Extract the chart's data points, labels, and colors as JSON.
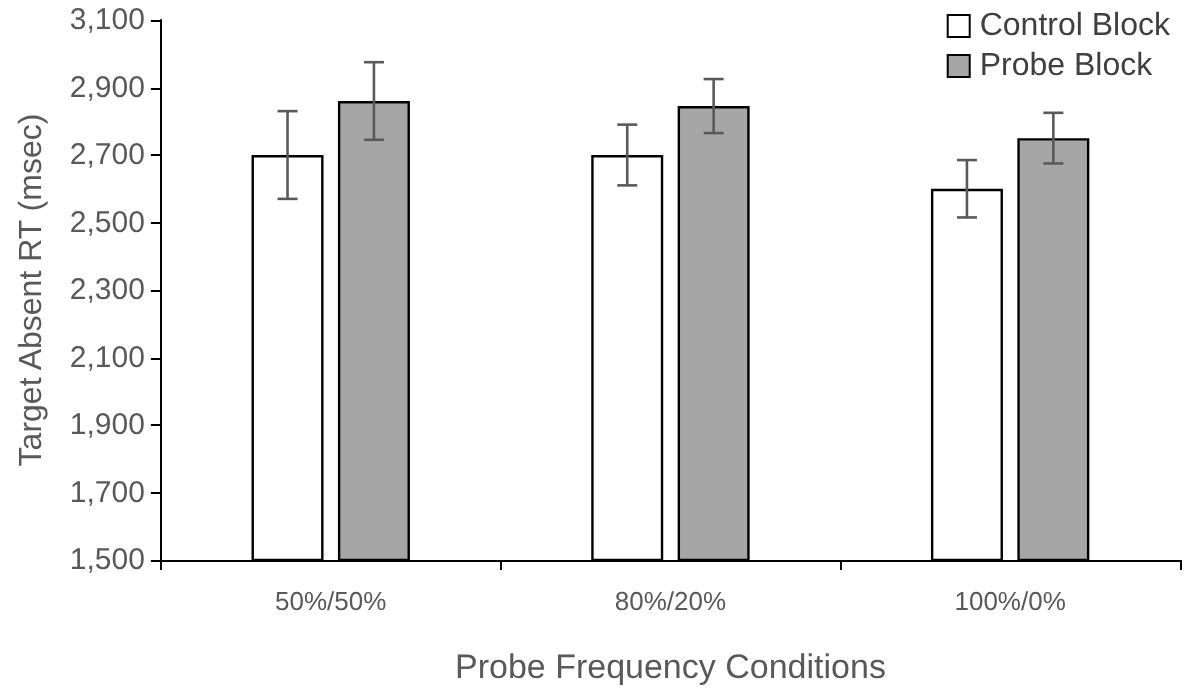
{
  "chart_data": {
    "type": "bar",
    "xlabel": "Probe Frequency Conditions",
    "ylabel": "Target Absent RT (msec)",
    "categories": [
      "50%/50%",
      "80%/20%",
      "100%/0%"
    ],
    "series": [
      {
        "name": "Control Block",
        "color": "#ffffff",
        "values": [
          2700,
          2700,
          2600
        ],
        "errors": [
          130,
          90,
          85
        ]
      },
      {
        "name": "Probe Block",
        "color": "#a6a6a6",
        "values": [
          2860,
          2845,
          2750
        ],
        "errors": [
          115,
          80,
          75
        ]
      }
    ],
    "ylim": [
      1500,
      3100
    ],
    "yticks": [
      {
        "value": 1500,
        "label": "1,500"
      },
      {
        "value": 1700,
        "label": "1,700"
      },
      {
        "value": 1900,
        "label": "1,900"
      },
      {
        "value": 2100,
        "label": "2,100"
      },
      {
        "value": 2300,
        "label": "2,300"
      },
      {
        "value": 2500,
        "label": "2,500"
      },
      {
        "value": 2700,
        "label": "2,700"
      },
      {
        "value": 2900,
        "label": "2,900"
      },
      {
        "value": 3100,
        "label": "3,100"
      }
    ],
    "grid": false,
    "legend": "top right"
  }
}
